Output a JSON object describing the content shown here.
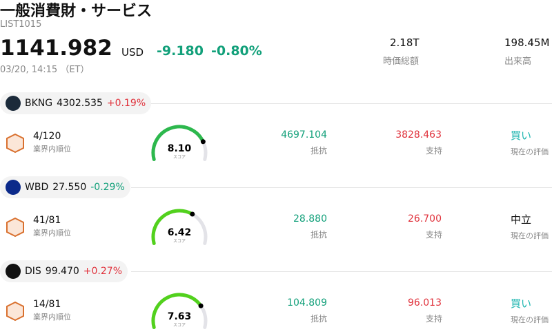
{
  "header": {
    "title": "一般消費財・サービス",
    "code": "LIST1015",
    "price": "1141.982",
    "currency": "USD",
    "change": "-9.180",
    "change_pct": "-0.80%",
    "timestamp": "03/20, 14:15 （ET）",
    "market_cap": "2.18T",
    "market_cap_label": "時価総額",
    "volume": "198.45M",
    "volume_label": "出来高"
  },
  "stocks": [
    {
      "ticker": "BKNG",
      "price": "4302.535",
      "change_pct": "+0.19%",
      "rank": "4/120",
      "rank_label": "業界内順位",
      "score": {
        "value": 8.1,
        "label": "8.10"
      },
      "score_label": "スコア",
      "resistance": "4697.104",
      "resistance_label": "抵抗",
      "support": "3828.463",
      "support_label": "支持",
      "rating": "買い",
      "rating_label": "現在の評価",
      "rating_color": "#1fb6b0",
      "gauge_color": "#2db84d",
      "icon_color": "#1b2a3a"
    },
    {
      "ticker": "WBD",
      "price": "27.550",
      "change_pct": "-0.29%",
      "rank": "41/81",
      "rank_label": "業界内順位",
      "score": {
        "value": 6.42,
        "label": "6.42"
      },
      "score_label": "スコア",
      "resistance": "28.880",
      "resistance_label": "抵抗",
      "support": "26.700",
      "support_label": "支持",
      "rating": "中立",
      "rating_label": "現在の評価",
      "rating_color": "#111111",
      "gauge_color": "#52d11d",
      "icon_color": "#0b2a8a"
    },
    {
      "ticker": "DIS",
      "price": "99.470",
      "change_pct": "+0.27%",
      "rank": "14/81",
      "rank_label": "業界内順位",
      "score": {
        "value": 7.63,
        "label": "7.63"
      },
      "score_label": "スコア",
      "resistance": "104.809",
      "resistance_label": "抵抗",
      "support": "96.013",
      "support_label": "支持",
      "rating": "買い",
      "rating_label": "現在の評価",
      "rating_color": "#1fb6b0",
      "gauge_color": "#52d11d",
      "icon_color": "#111111"
    }
  ]
}
